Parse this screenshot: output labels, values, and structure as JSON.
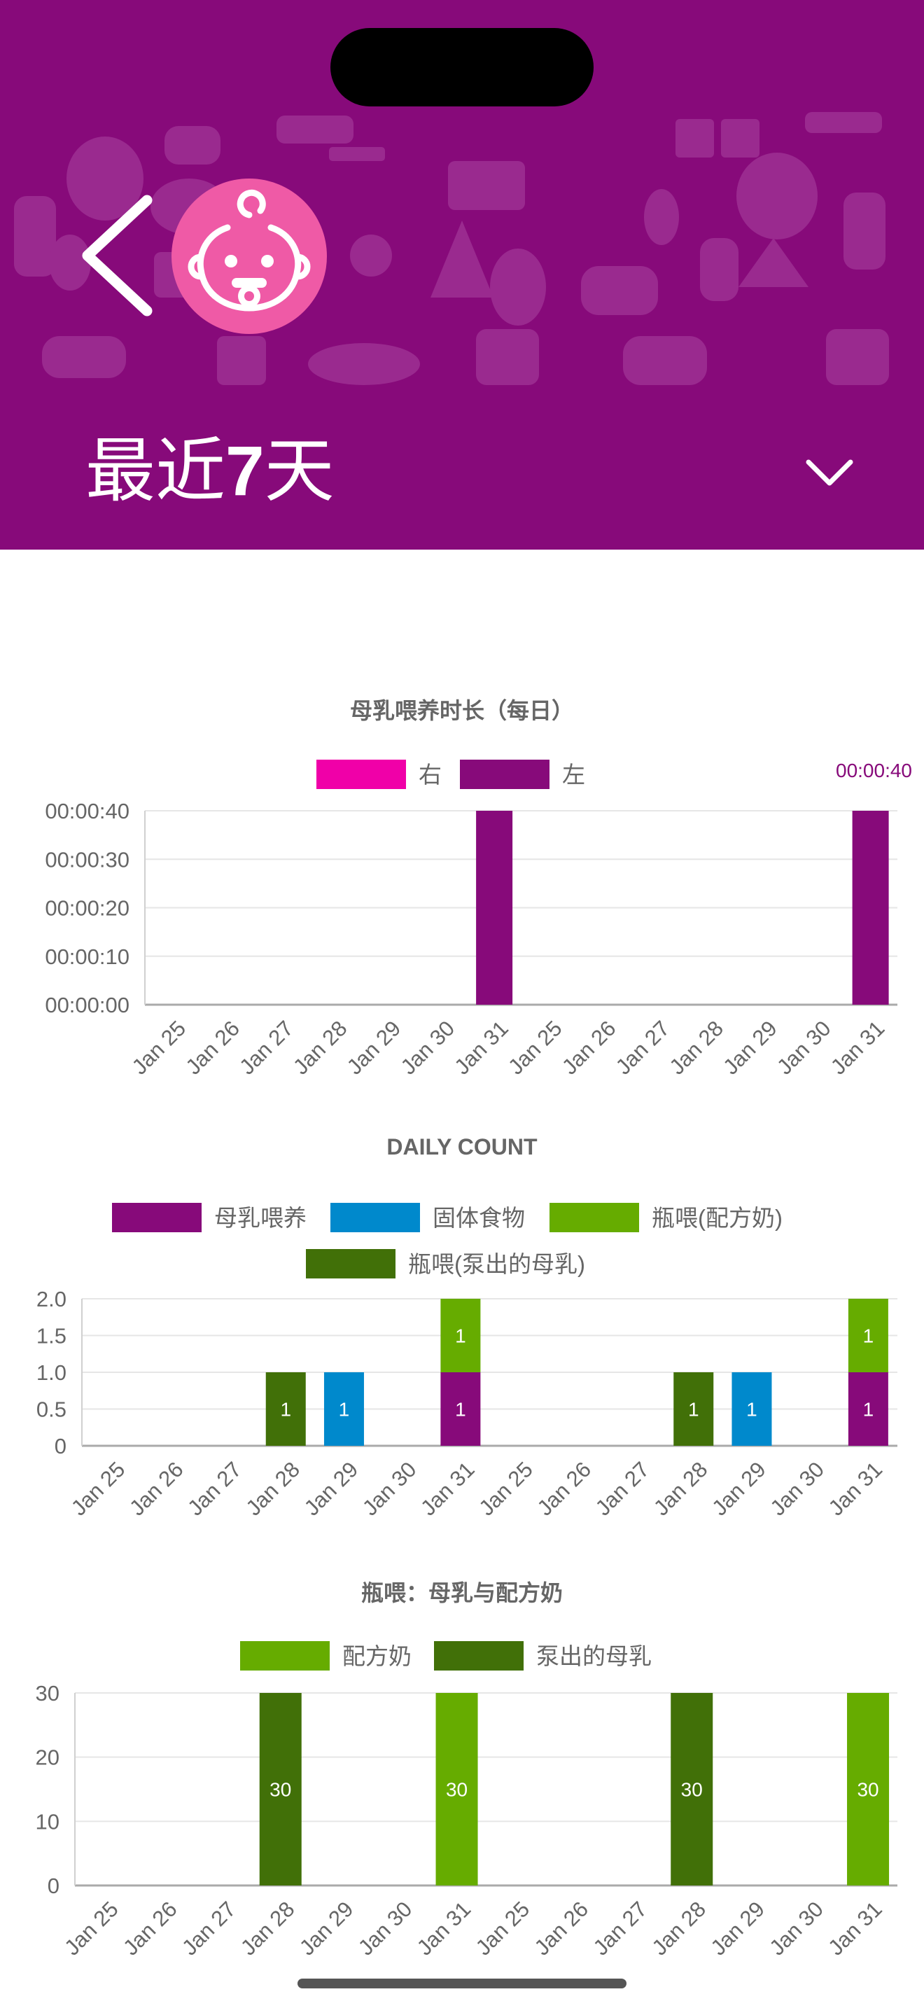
{
  "header": {
    "title_prefix": "最近",
    "title_number": "7",
    "title_suffix": "天",
    "colors": {
      "background": "#870a7a",
      "pattern": "#9a2a8f",
      "avatar": "#ef5aa6"
    },
    "icons": [
      "back-chevron-icon",
      "baby-face-icon",
      "chevron-down-icon"
    ]
  },
  "charts": {
    "duration": {
      "title": "母乳喂养时长（每日）",
      "legend": [
        {
          "label": "右",
          "color": "#f000a8"
        },
        {
          "label": "左",
          "color": "#870a7a"
        }
      ],
      "overflow_label": "00:00:40",
      "yticks": [
        "00:00:00",
        "00:00:10",
        "00:00:20",
        "00:00:30",
        "00:00:40"
      ]
    },
    "count": {
      "title": "DAILY COUNT",
      "legend": [
        {
          "label": "母乳喂养",
          "color": "#870a7a"
        },
        {
          "label": "固体食物",
          "color": "#0089cc"
        },
        {
          "label": "瓶喂(配方奶)",
          "color": "#66ac00"
        },
        {
          "label": "瓶喂(泵出的母乳)",
          "color": "#417008"
        }
      ],
      "yticks": [
        "0",
        "0.5",
        "1.0",
        "1.5",
        "2.0"
      ]
    },
    "bottle": {
      "title": "瓶喂：母乳与配方奶",
      "legend": [
        {
          "label": "配方奶",
          "color": "#66ac00"
        },
        {
          "label": "泵出的母乳",
          "color": "#417008"
        }
      ],
      "yticks": [
        "0",
        "10",
        "20",
        "30"
      ]
    }
  },
  "chart_data": [
    {
      "type": "bar",
      "title": "母乳喂养时长（每日）",
      "categories": [
        "Jan 25",
        "Jan 26",
        "Jan 27",
        "Jan 28",
        "Jan 29",
        "Jan 30",
        "Jan 31",
        "Jan 25",
        "Jan 26",
        "Jan 27",
        "Jan 28",
        "Jan 29",
        "Jan 30",
        "Jan 31"
      ],
      "series": [
        {
          "name": "右",
          "color": "#f000a8",
          "values": [
            0,
            0,
            0,
            0,
            0,
            0,
            0,
            0,
            0,
            0,
            0,
            0,
            0,
            0
          ]
        },
        {
          "name": "左",
          "color": "#870a7a",
          "values": [
            0,
            0,
            0,
            0,
            0,
            0,
            40,
            0,
            0,
            0,
            0,
            0,
            0,
            40
          ]
        }
      ],
      "ylim": [
        0,
        40
      ],
      "yunit": "seconds",
      "grid": true,
      "legend": "top"
    },
    {
      "type": "bar",
      "title": "DAILY COUNT",
      "stacked": true,
      "categories": [
        "Jan 25",
        "Jan 26",
        "Jan 27",
        "Jan 28",
        "Jan 29",
        "Jan 30",
        "Jan 31",
        "Jan 25",
        "Jan 26",
        "Jan 27",
        "Jan 28",
        "Jan 29",
        "Jan 30",
        "Jan 31"
      ],
      "series": [
        {
          "name": "母乳喂养",
          "color": "#870a7a",
          "values": [
            0,
            0,
            0,
            0,
            0,
            0,
            1,
            0,
            0,
            0,
            0,
            0,
            0,
            1
          ]
        },
        {
          "name": "固体食物",
          "color": "#0089cc",
          "values": [
            0,
            0,
            0,
            0,
            1,
            0,
            0,
            0,
            0,
            0,
            0,
            1,
            0,
            0
          ]
        },
        {
          "name": "瓶喂(配方奶)",
          "color": "#66ac00",
          "values": [
            0,
            0,
            0,
            0,
            0,
            0,
            1,
            0,
            0,
            0,
            0,
            0,
            0,
            1
          ]
        },
        {
          "name": "瓶喂(泵出的母乳)",
          "color": "#417008",
          "values": [
            0,
            0,
            0,
            1,
            0,
            0,
            0,
            0,
            0,
            0,
            1,
            0,
            0,
            0
          ]
        }
      ],
      "ylim": [
        0,
        2
      ],
      "grid": true,
      "legend": "top"
    },
    {
      "type": "bar",
      "title": "瓶喂：母乳与配方奶",
      "stacked": true,
      "categories": [
        "Jan 25",
        "Jan 26",
        "Jan 27",
        "Jan 28",
        "Jan 29",
        "Jan 30",
        "Jan 31",
        "Jan 25",
        "Jan 26",
        "Jan 27",
        "Jan 28",
        "Jan 29",
        "Jan 30",
        "Jan 31"
      ],
      "series": [
        {
          "name": "配方奶",
          "color": "#66ac00",
          "values": [
            0,
            0,
            0,
            0,
            0,
            0,
            30,
            0,
            0,
            0,
            0,
            0,
            0,
            30
          ]
        },
        {
          "name": "泵出的母乳",
          "color": "#417008",
          "values": [
            0,
            0,
            0,
            30,
            0,
            0,
            0,
            0,
            0,
            0,
            30,
            0,
            0,
            0
          ]
        }
      ],
      "ylim": [
        0,
        30
      ],
      "grid": true,
      "legend": "top"
    }
  ]
}
